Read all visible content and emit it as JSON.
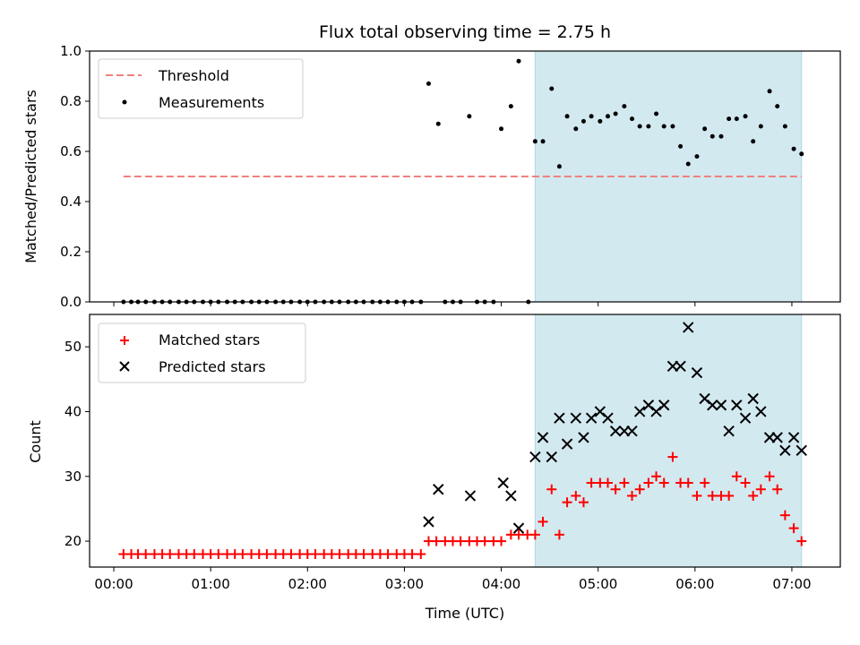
{
  "figure": {
    "title": "Flux total observing time = 2.75 h",
    "xlabel": "Time (UTC)",
    "x_ticks": [
      "00:00",
      "01:00",
      "02:00",
      "03:00",
      "04:00",
      "05:00",
      "06:00",
      "07:00"
    ],
    "shade_color": "#d3e9f0",
    "shade_range_hours": [
      4.35,
      7.1
    ]
  },
  "chart_data": [
    {
      "type": "scatter",
      "ylabel": "Matched/Predicted stars",
      "xlim_hours": [
        -0.25,
        7.5
      ],
      "ylim": [
        0,
        1
      ],
      "y_ticks": [
        "0.0",
        "0.2",
        "0.4",
        "0.6",
        "0.8",
        "1.0"
      ],
      "legend": {
        "placement": "top-left",
        "threshold_label": "Threshold",
        "measurements_label": "Measurements"
      },
      "threshold": {
        "value": 0.5,
        "x_range_hours": [
          0.1,
          7.1
        ],
        "color": "#f08080"
      },
      "series": [
        {
          "name": "Measurements",
          "color": "#000000",
          "x_hours": [
            0.1,
            0.18,
            0.25,
            0.33,
            0.42,
            0.5,
            0.58,
            0.67,
            0.75,
            0.83,
            0.92,
            1.0,
            1.08,
            1.17,
            1.25,
            1.33,
            1.42,
            1.5,
            1.58,
            1.67,
            1.75,
            1.83,
            1.92,
            2.0,
            2.08,
            2.17,
            2.25,
            2.33,
            2.42,
            2.5,
            2.58,
            2.67,
            2.75,
            2.83,
            2.92,
            3.0,
            3.08,
            3.17,
            3.25,
            3.35,
            3.42,
            3.5,
            3.58,
            3.67,
            3.75,
            3.83,
            3.92,
            4.0,
            4.1,
            4.18,
            4.28,
            4.35,
            4.43,
            4.52,
            4.6,
            4.68,
            4.77,
            4.85,
            4.93,
            5.02,
            5.1,
            5.18,
            5.27,
            5.35,
            5.43,
            5.52,
            5.6,
            5.68,
            5.77,
            5.85,
            5.93,
            6.02,
            6.1,
            6.18,
            6.27,
            6.35,
            6.43,
            6.52,
            6.6,
            6.68,
            6.77,
            6.85,
            6.93,
            7.02,
            7.1
          ],
          "y": [
            0,
            0,
            0,
            0,
            0,
            0,
            0,
            0,
            0,
            0,
            0,
            0,
            0,
            0,
            0,
            0,
            0,
            0,
            0,
            0,
            0,
            0,
            0,
            0,
            0,
            0,
            0,
            0,
            0,
            0,
            0,
            0,
            0,
            0,
            0,
            0,
            0,
            0,
            0.87,
            0.71,
            0,
            0,
            0,
            0.74,
            0,
            0,
            0,
            0.69,
            0.78,
            0.96,
            0,
            0.64,
            0.64,
            0.85,
            0.54,
            0.74,
            0.69,
            0.72,
            0.74,
            0.72,
            0.74,
            0.75,
            0.78,
            0.73,
            0.7,
            0.7,
            0.75,
            0.7,
            0.7,
            0.62,
            0.55,
            0.58,
            0.69,
            0.66,
            0.66,
            0.73,
            0.73,
            0.74,
            0.64,
            0.7,
            0.84,
            0.78,
            0.7,
            0.61,
            0.59
          ]
        }
      ]
    },
    {
      "type": "scatter",
      "ylabel": "Count",
      "xlim_hours": [
        -0.25,
        7.5
      ],
      "ylim": [
        16,
        55
      ],
      "y_ticks": [
        "20",
        "30",
        "40",
        "50"
      ],
      "legend": {
        "placement": "top-left",
        "matched_label": "Matched stars",
        "predicted_label": "Predicted stars"
      },
      "series": [
        {
          "name": "Matched stars",
          "marker": "+",
          "color": "#ff0000",
          "x_hours": [
            0.1,
            0.18,
            0.25,
            0.33,
            0.42,
            0.5,
            0.58,
            0.67,
            0.75,
            0.83,
            0.92,
            1.0,
            1.08,
            1.17,
            1.25,
            1.33,
            1.42,
            1.5,
            1.58,
            1.67,
            1.75,
            1.83,
            1.92,
            2.0,
            2.08,
            2.17,
            2.25,
            2.33,
            2.42,
            2.5,
            2.58,
            2.67,
            2.75,
            2.83,
            2.92,
            3.0,
            3.08,
            3.17,
            3.25,
            3.33,
            3.42,
            3.5,
            3.58,
            3.67,
            3.75,
            3.83,
            3.92,
            4.0,
            4.1,
            4.18,
            4.27,
            4.35,
            4.43,
            4.52,
            4.6,
            4.68,
            4.77,
            4.85,
            4.93,
            5.02,
            5.1,
            5.18,
            5.27,
            5.35,
            5.43,
            5.52,
            5.6,
            5.68,
            5.77,
            5.85,
            5.93,
            6.02,
            6.1,
            6.18,
            6.27,
            6.35,
            6.43,
            6.52,
            6.6,
            6.68,
            6.77,
            6.85,
            6.93,
            7.02,
            7.1
          ],
          "y": [
            18,
            18,
            18,
            18,
            18,
            18,
            18,
            18,
            18,
            18,
            18,
            18,
            18,
            18,
            18,
            18,
            18,
            18,
            18,
            18,
            18,
            18,
            18,
            18,
            18,
            18,
            18,
            18,
            18,
            18,
            18,
            18,
            18,
            18,
            18,
            18,
            18,
            18,
            20,
            20,
            20,
            20,
            20,
            20,
            20,
            20,
            20,
            20,
            21,
            21,
            21,
            21,
            23,
            28,
            21,
            26,
            27,
            26,
            29,
            29,
            29,
            28,
            29,
            27,
            28,
            29,
            30,
            29,
            33,
            29,
            29,
            27,
            29,
            27,
            27,
            27,
            30,
            29,
            27,
            28,
            30,
            28,
            24,
            22,
            20
          ]
        },
        {
          "name": "Predicted stars",
          "marker": "x",
          "color": "#000000",
          "x_hours": [
            3.25,
            3.35,
            3.68,
            4.02,
            4.1,
            4.18,
            4.35,
            4.43,
            4.52,
            4.6,
            4.68,
            4.77,
            4.85,
            4.93,
            5.02,
            5.1,
            5.18,
            5.27,
            5.35,
            5.43,
            5.52,
            5.6,
            5.68,
            5.77,
            5.85,
            5.93,
            6.02,
            6.1,
            6.18,
            6.27,
            6.35,
            6.43,
            6.52,
            6.6,
            6.68,
            6.77,
            6.85,
            6.93,
            7.02,
            7.1
          ],
          "y": [
            23,
            28,
            27,
            29,
            27,
            22,
            33,
            36,
            33,
            39,
            35,
            39,
            36,
            39,
            40,
            39,
            37,
            37,
            37,
            40,
            41,
            40,
            41,
            47,
            47,
            53,
            46,
            42,
            41,
            41,
            37,
            41,
            39,
            42,
            40,
            36,
            36,
            34,
            36,
            34
          ]
        }
      ]
    }
  ]
}
